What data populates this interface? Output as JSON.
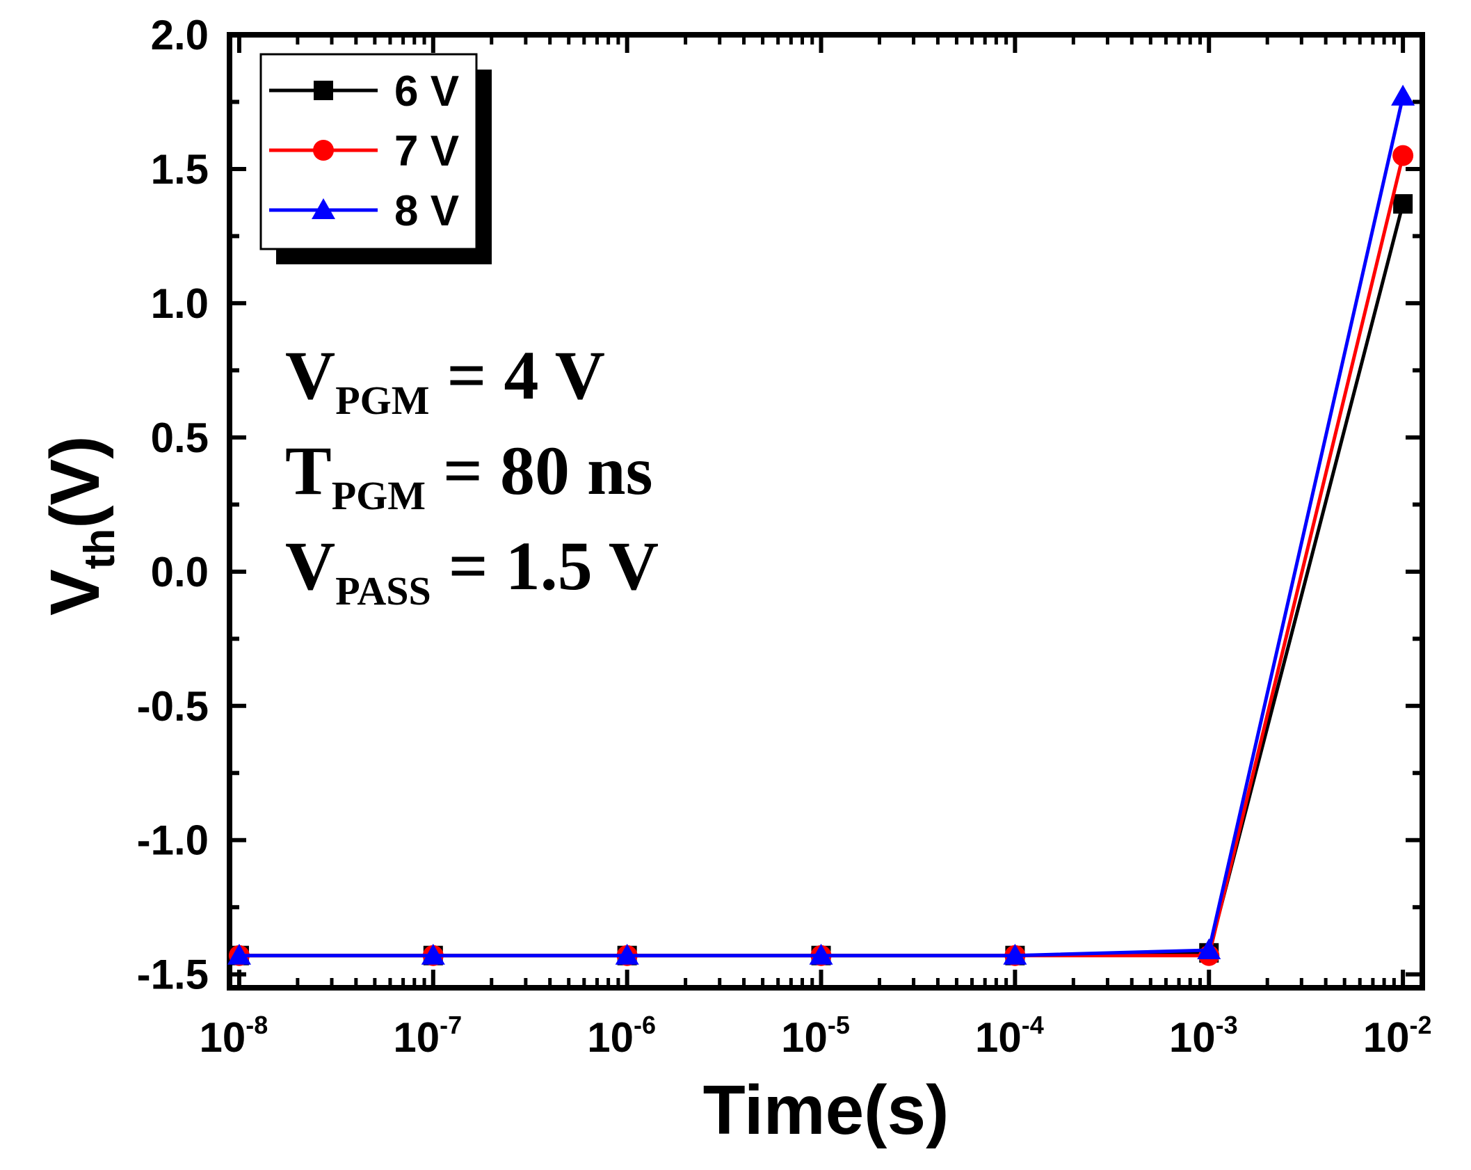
{
  "chart_data": {
    "type": "line",
    "xscale": "log",
    "x": [
      1e-08,
      1e-07,
      1e-06,
      1e-05,
      0.0001,
      0.001,
      0.01
    ],
    "x_tick_labels": [
      {
        "base": "10",
        "exp": "-8"
      },
      {
        "base": "10",
        "exp": "-7"
      },
      {
        "base": "10",
        "exp": "-6"
      },
      {
        "base": "10",
        "exp": "-5"
      },
      {
        "base": "10",
        "exp": "-4"
      },
      {
        "base": "10",
        "exp": "-3"
      },
      {
        "base": "10",
        "exp": "-2"
      }
    ],
    "y_ticks": [
      2.0,
      1.5,
      1.0,
      0.5,
      0.0,
      -0.5,
      -1.0,
      -1.5
    ],
    "y_tick_labels": [
      "2.0",
      "1.5",
      "1.0",
      "0.5",
      "0.0",
      "-0.5",
      "-1.0",
      "-1.5"
    ],
    "ylim": [
      -1.55,
      2.0
    ],
    "xlabel": "Time(s)",
    "ylabel_main": "V",
    "ylabel_sub": "th",
    "ylabel_unit": "(V)",
    "grid": false,
    "legend_position": "top-left",
    "series": [
      {
        "name": "6 V",
        "color": "#000000",
        "marker": "square",
        "values": [
          -1.43,
          -1.43,
          -1.43,
          -1.43,
          -1.43,
          -1.42,
          1.37
        ]
      },
      {
        "name": "7 V",
        "color": "#ff0000",
        "marker": "circle",
        "values": [
          -1.43,
          -1.43,
          -1.43,
          -1.43,
          -1.43,
          -1.43,
          1.55
        ]
      },
      {
        "name": "8 V",
        "color": "#0000ff",
        "marker": "triangle",
        "values": [
          -1.43,
          -1.43,
          -1.43,
          -1.43,
          -1.43,
          -1.41,
          1.77
        ]
      }
    ],
    "annotations": [
      {
        "main": "V",
        "sub": "PGM",
        "rest": " = 4 V"
      },
      {
        "main": "T",
        "sub": "PGM",
        "rest": " = 80 ns"
      },
      {
        "main": "V",
        "sub": "PASS",
        "rest": " = 1.5 V"
      }
    ]
  }
}
